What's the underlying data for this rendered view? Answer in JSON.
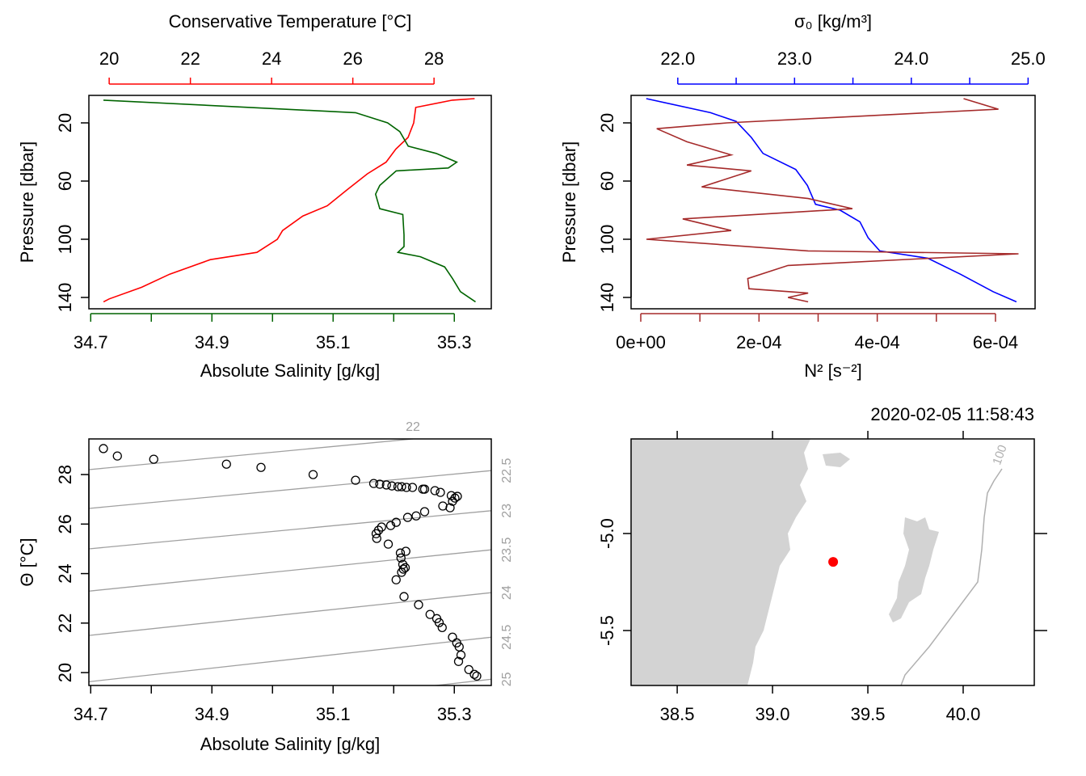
{
  "chart_data": [
    {
      "type": "profile",
      "ylabel": "Pressure [dbar]",
      "ylim": [
        147.8,
        1.1
      ],
      "yticks": [
        20,
        60,
        100,
        140
      ],
      "top_axis": {
        "label": "Conservative Temperature [°C]",
        "color": "#ff0000",
        "lim": [
          19.5,
          29.41
        ],
        "ticks": [
          20,
          22,
          24,
          26,
          28
        ],
        "minor_ticks": []
      },
      "bottom_axis": {
        "label": "Absolute Salinity [g/kg]",
        "color": "#006400",
        "lim": [
          34.697,
          35.361
        ],
        "ticks": [
          34.7,
          34.9,
          35.1,
          35.3
        ],
        "minor_ticks": [
          34.8,
          35.0,
          35.2
        ]
      },
      "series": [
        {
          "axis": "top_axis",
          "color": "#ff0000",
          "pressure": [
            3.3,
            4.4,
            9.4,
            20,
            30,
            38,
            47,
            55,
            66,
            77,
            84,
            94,
            100,
            109,
            114,
            124,
            133,
            141,
            143
          ],
          "values": [
            29.0,
            28.45,
            27.55,
            27.5,
            27.36,
            27.06,
            26.82,
            26.36,
            25.86,
            25.37,
            24.77,
            24.27,
            24.14,
            23.64,
            22.49,
            21.49,
            20.8,
            20.0,
            19.86
          ]
        },
        {
          "axis": "bottom_axis",
          "color": "#006400",
          "pressure": [
            4.4,
            13,
            20,
            26,
            36,
            41,
            47,
            51,
            53,
            63,
            69,
            79,
            83,
            97,
            105,
            109,
            112,
            119,
            127,
            136,
            143
          ],
          "values": [
            34.721,
            35.137,
            35.19,
            35.21,
            35.224,
            35.27,
            35.304,
            35.29,
            35.204,
            35.177,
            35.17,
            35.177,
            35.215,
            35.217,
            35.217,
            35.207,
            35.244,
            35.284,
            35.297,
            35.31,
            35.335
          ]
        }
      ]
    },
    {
      "type": "profile",
      "ylabel": "Pressure [dbar]",
      "ylim": [
        147.8,
        1.1
      ],
      "yticks": [
        20,
        60,
        100,
        140
      ],
      "top_axis": {
        "label": "σ₀ [kg/m³]",
        "color": "#0000ff",
        "lim": [
          21.6,
          25.06
        ],
        "ticks": [
          {
            "value": 22,
            "label": "22.0"
          },
          {
            "value": 23,
            "label": "23.0"
          },
          {
            "value": 24,
            "label": "24.0"
          },
          {
            "value": 25,
            "label": "25.0"
          }
        ],
        "minor_ticks": [
          22.5,
          23.5,
          24.5
        ]
      },
      "bottom_axis": {
        "label": "N² [s⁻²]",
        "color": "#a52a2a",
        "lim": [
          -1.64e-05,
          0.000667
        ],
        "ticks": [
          {
            "value": 0,
            "label": "0e+00"
          },
          {
            "value": 0.0002,
            "label": "2e-04"
          },
          {
            "value": 0.0004,
            "label": "4e-04"
          },
          {
            "value": 0.0006,
            "label": "6e-04"
          }
        ],
        "minor_ticks": [
          0.0001,
          0.0003,
          0.0005
        ]
      },
      "series": [
        {
          "axis": "top_axis",
          "color": "#0000ff",
          "pressure": [
            3.3,
            13,
            19,
            30,
            41,
            52,
            63,
            76,
            80,
            88,
            99,
            108,
            113,
            124,
            136,
            143
          ],
          "values": [
            21.73,
            22.28,
            22.5,
            22.63,
            22.73,
            23.01,
            23.11,
            23.18,
            23.39,
            23.56,
            23.63,
            23.73,
            24.14,
            24.42,
            24.7,
            24.9
          ]
        },
        {
          "axis": "bottom_axis",
          "color": "#a52a2a",
          "pressure": [
            3.3,
            10.6,
            20,
            24,
            33,
            42,
            49,
            53,
            64,
            72,
            79,
            86,
            94,
            100,
            108,
            110,
            118,
            127,
            134,
            137,
            140,
            143
          ],
          "values": [
            0.000546,
            0.000605,
            0.000146,
            2.7e-05,
            7.8e-05,
            0.000153,
            7.8e-05,
            0.000187,
            0.000103,
            0.000283,
            0.000358,
            7.1e-05,
            0.000153,
            9.6e-06,
            0.000283,
            0.000639,
            0.000249,
            0.000181,
            0.000183,
            0.000283,
            0.000249,
            0.000283
          ]
        }
      ]
    },
    {
      "type": "ts",
      "xlabel": "Absolute Salinity [g/kg]",
      "ylabel": "Θ [°C]",
      "xlim": [
        34.697,
        35.361
      ],
      "ylim": [
        19.48,
        29.44
      ],
      "xticks": [
        34.7,
        34.9,
        35.1,
        35.3
      ],
      "xminor_ticks": [
        34.8,
        35.0,
        35.2
      ],
      "yticks": [
        20,
        22,
        24,
        26,
        28
      ],
      "isopycnal_color": "#a0a0a0",
      "isopycnals": [
        {
          "level": 22,
          "x": [
            34.697,
            35.361
          ],
          "values": [
            28.2,
            29.74
          ]
        },
        {
          "level": 22.5,
          "x": [
            34.697,
            35.361
          ],
          "values": [
            26.63,
            28.16
          ]
        },
        {
          "level": 23,
          "x": [
            34.697,
            35.361
          ],
          "values": [
            25.0,
            26.54
          ]
        },
        {
          "level": 23.5,
          "x": [
            34.697,
            35.361
          ],
          "values": [
            23.29,
            24.96
          ]
        },
        {
          "level": 24,
          "x": [
            34.697,
            35.361
          ],
          "values": [
            21.5,
            23.23
          ]
        },
        {
          "level": 24.5,
          "x": [
            34.697,
            35.361
          ],
          "values": [
            19.63,
            21.43
          ]
        },
        {
          "level": 25,
          "x": [
            34.697,
            35.361
          ],
          "values": [
            17.9,
            19.73
          ]
        }
      ],
      "x": [
        34.721,
        34.744,
        34.804,
        34.924,
        34.981,
        35.067,
        35.137,
        35.167,
        35.177,
        35.188,
        35.197,
        35.207,
        35.213,
        35.221,
        35.231,
        35.248,
        35.251,
        35.268,
        35.277,
        35.295,
        35.301,
        35.305,
        35.297,
        35.281,
        35.293,
        35.251,
        35.237,
        35.223,
        35.204,
        35.195,
        35.18,
        35.175,
        35.171,
        35.172,
        35.191,
        35.211,
        35.22,
        35.212,
        35.215,
        35.216,
        35.219,
        35.213,
        35.204,
        35.217,
        35.241,
        35.26,
        35.271,
        35.275,
        35.28,
        35.297,
        35.304,
        35.308,
        35.311,
        35.307,
        35.324,
        35.333,
        35.337
      ],
      "values": [
        29.05,
        28.75,
        28.62,
        28.42,
        28.29,
        28.0,
        27.77,
        27.64,
        27.61,
        27.58,
        27.54,
        27.51,
        27.51,
        27.48,
        27.48,
        27.41,
        27.41,
        27.35,
        27.28,
        27.15,
        27.05,
        27.12,
        26.92,
        26.73,
        26.66,
        26.5,
        26.33,
        26.27,
        26.07,
        25.94,
        25.88,
        25.75,
        25.61,
        25.42,
        25.19,
        24.83,
        24.9,
        24.63,
        24.37,
        24.18,
        24.24,
        24.05,
        23.75,
        23.07,
        22.74,
        22.35,
        22.18,
        22.02,
        21.82,
        21.43,
        21.2,
        21.04,
        20.71,
        20.45,
        20.12,
        19.93,
        19.86
      ]
    },
    {
      "type": "map",
      "title": "2020-02-05 11:58:43",
      "contour_label": "100",
      "xlim": [
        38.258,
        40.373
      ],
      "ylim": [
        -5.783,
        -4.5125
      ],
      "xticks": [
        38.5,
        {
          "value": 39,
          "label": "39.0"
        },
        39.5,
        {
          "value": 40,
          "label": "40.0"
        }
      ],
      "yticks": [
        {
          "value": -5,
          "label": "-5.0"
        },
        -5.5
      ],
      "x": [
        39.318
      ],
      "values": [
        -5.146
      ],
      "color": "#ff0000"
    }
  ]
}
